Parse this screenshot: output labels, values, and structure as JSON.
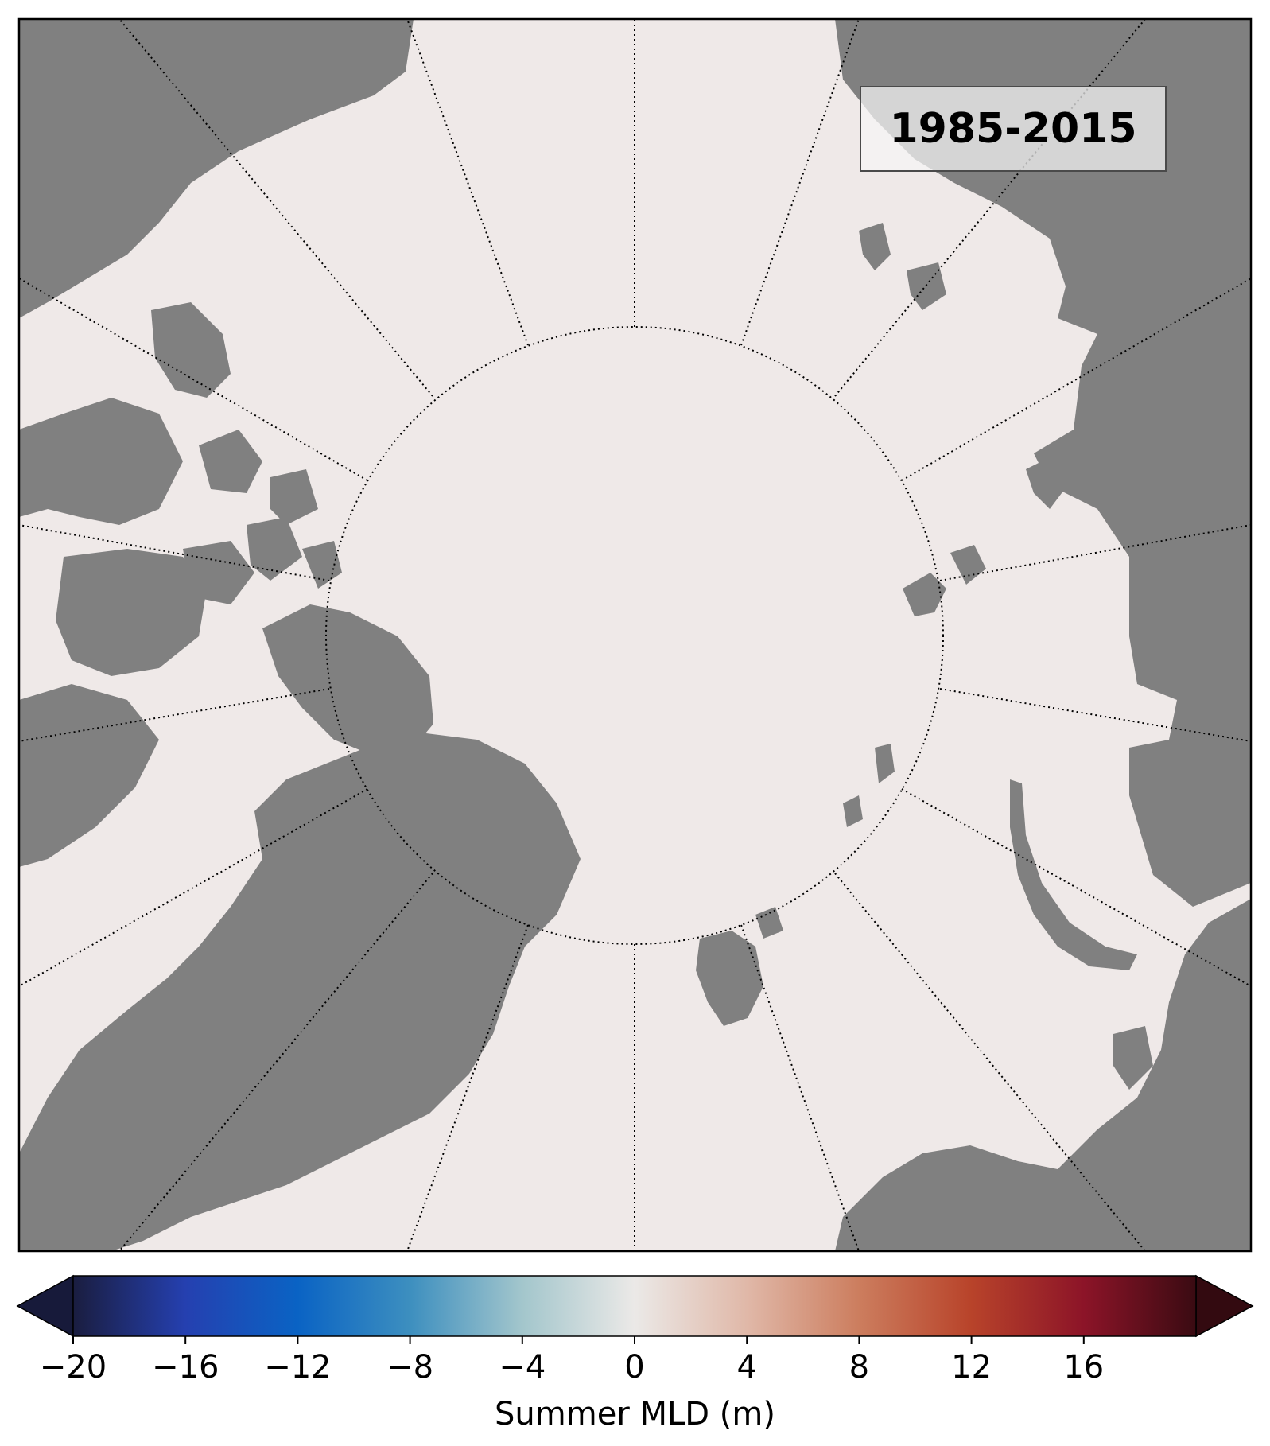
{
  "map": {
    "period_label": "1985-2015",
    "projection": "north-polar-stereographic",
    "ocean_color": "#efe9e8",
    "land_color": "#808080",
    "shelf_ice_color": "#a6a6a6",
    "graticule_style": "dotted"
  },
  "colorbar": {
    "label": "Summer MLD (m)",
    "min": -20,
    "max": 20,
    "extend": "both",
    "tick_values": [
      -20,
      -16,
      -12,
      -8,
      -4,
      0,
      4,
      8,
      12,
      16
    ],
    "tick_labels": [
      "−20",
      "−16",
      "−12",
      "−8",
      "−4",
      "0",
      "4",
      "8",
      "12",
      "16"
    ],
    "colormap_stops": [
      "#1a1d3f",
      "#2540b0",
      "#0a63c4",
      "#3d8fbf",
      "#a3c6cc",
      "#ebe9e7",
      "#e0b8a8",
      "#cc7d5e",
      "#b8432a",
      "#8c1428",
      "#3a0b12"
    ]
  }
}
